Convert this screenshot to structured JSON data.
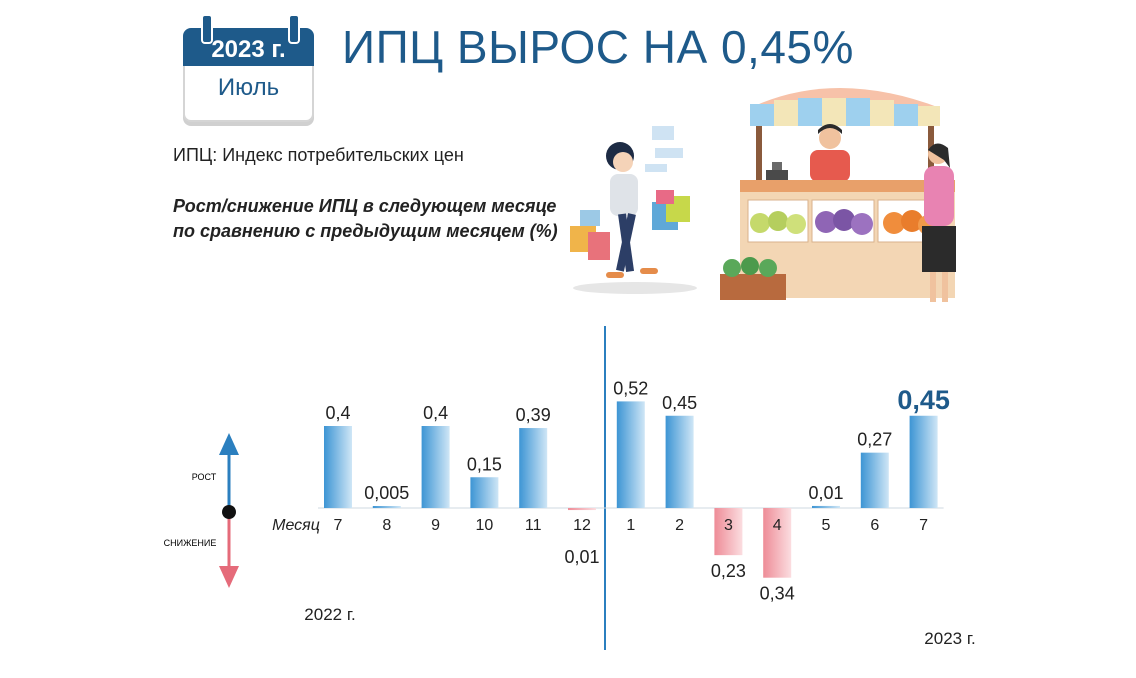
{
  "header": {
    "year_badge": "2023 г.",
    "month": "Июль",
    "title": "ИПЦ ВЫРОС НА 0,45%",
    "subtitle": "ИПЦ: Индекс потребительских цен",
    "description": "Рост/снижение ИПЦ в следующем месяце по сравнению с предыдущим месяцем (%)"
  },
  "legend": {
    "up": "РОСТ",
    "down": "СНИЖЕНИЕ"
  },
  "colors": {
    "title": "#1e5a8a",
    "up_bar": "#5aa7dd",
    "down_bar": "#f2a3aa",
    "divider": "#2b7fbf",
    "highlight": "#1e5a8a"
  },
  "chart_data": {
    "type": "bar",
    "xlabel": "Месяц",
    "categories": [
      "7",
      "8",
      "9",
      "10",
      "11",
      "12",
      "1",
      "2",
      "3",
      "4",
      "5",
      "6",
      "7"
    ],
    "values": [
      0.4,
      0.005,
      0.4,
      0.15,
      0.39,
      -0.01,
      0.52,
      0.45,
      -0.23,
      -0.34,
      0.01,
      0.27,
      0.45
    ],
    "labels": [
      "0,4",
      "0,005",
      "0,4",
      "0,15",
      "0,39",
      "0,01",
      "0,52",
      "0,45",
      "0,23",
      "0,34",
      "0,01",
      "0,27",
      "0,45"
    ],
    "highlight_index": 12,
    "period_labels": [
      "2022 г.",
      "2023 г."
    ],
    "divider_after_index": 5
  }
}
